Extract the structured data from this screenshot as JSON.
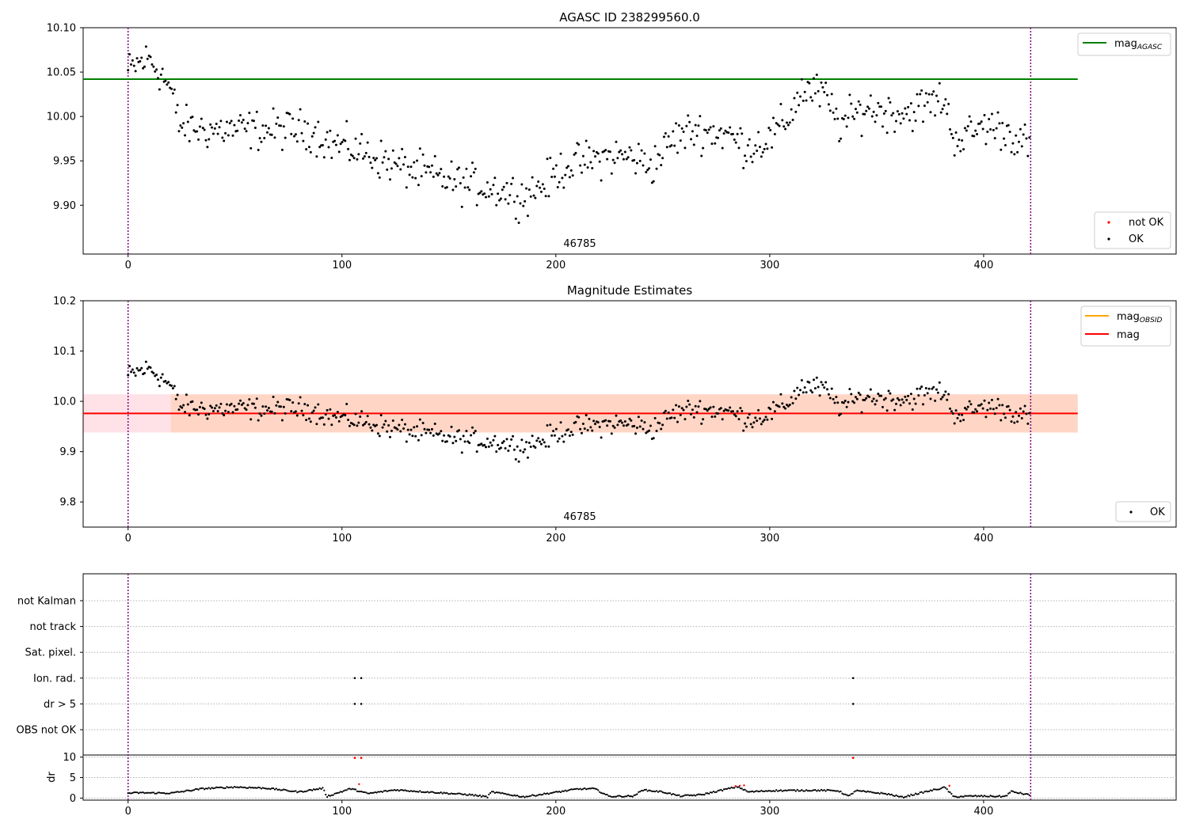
{
  "chart_data": [
    {
      "type": "scatter",
      "title": "AGASC ID 238299560.0",
      "annotation": "46785",
      "xlim": [
        -21,
        490
      ],
      "ylim": [
        9.845,
        10.1
      ],
      "x_ticks": [
        "0",
        "100",
        "200",
        "300",
        "400"
      ],
      "y_ticks": [
        "9.90",
        "9.95",
        "10.00",
        "10.05",
        "10.10"
      ],
      "vlines_x": [
        0,
        422
      ],
      "hline": {
        "y": 10.042,
        "x_range": [
          -21,
          444
        ],
        "color": "#008000"
      },
      "legend_upper": [
        {
          "label": "mag",
          "sub": "AGASC",
          "color": "#008000",
          "kind": "line"
        }
      ],
      "legend_lower": [
        {
          "label": "not OK",
          "color": "#ff0000",
          "kind": "dot"
        },
        {
          "label": "OK",
          "color": "#000000",
          "kind": "dot"
        }
      ],
      "series_anchors": [
        [
          0,
          10.05
        ],
        [
          5,
          10.06
        ],
        [
          10,
          10.065
        ],
        [
          15,
          10.05
        ],
        [
          20,
          10.03
        ],
        [
          24,
          9.99
        ],
        [
          35,
          9.985
        ],
        [
          50,
          9.985
        ],
        [
          70,
          9.985
        ],
        [
          85,
          9.985
        ],
        [
          95,
          9.97
        ],
        [
          110,
          9.96
        ],
        [
          125,
          9.945
        ],
        [
          140,
          9.935
        ],
        [
          155,
          9.925
        ],
        [
          170,
          9.92
        ],
        [
          185,
          9.91
        ],
        [
          195,
          9.925
        ],
        [
          205,
          9.945
        ],
        [
          215,
          9.95
        ],
        [
          225,
          9.955
        ],
        [
          235,
          9.955
        ],
        [
          245,
          9.945
        ],
        [
          255,
          9.975
        ],
        [
          265,
          9.985
        ],
        [
          280,
          9.98
        ],
        [
          290,
          9.965
        ],
        [
          300,
          9.975
        ],
        [
          308,
          9.995
        ],
        [
          315,
          10.03
        ],
        [
          325,
          10.025
        ],
        [
          333,
          9.99
        ],
        [
          345,
          10.01
        ],
        [
          355,
          10.005
        ],
        [
          365,
          10.005
        ],
        [
          375,
          10.015
        ],
        [
          382,
          10.02
        ],
        [
          385,
          9.98
        ],
        [
          390,
          9.975
        ],
        [
          400,
          9.99
        ],
        [
          410,
          9.985
        ],
        [
          422,
          9.965
        ]
      ]
    },
    {
      "type": "scatter",
      "title": "Magnitude Estimates",
      "annotation": "46785",
      "xlim": [
        -21,
        490
      ],
      "ylim": [
        9.75,
        10.2
      ],
      "x_ticks": [
        "0",
        "100",
        "200",
        "300",
        "400"
      ],
      "y_ticks": [
        "9.8",
        "9.9",
        "10.0",
        "10.1",
        "10.2"
      ],
      "vlines_x": [
        0,
        422
      ],
      "mag_line": {
        "y": 9.976,
        "x_range": [
          -21,
          444
        ],
        "color": "#ff0000"
      },
      "mag_band": {
        "y_range": [
          9.938,
          10.014
        ],
        "x_range": [
          -21,
          444
        ]
      },
      "legend_upper": [
        {
          "label": "mag",
          "sub": "OBSID",
          "color": "#ffa500",
          "kind": "line"
        },
        {
          "label": "mag",
          "color": "#ff0000",
          "kind": "line"
        }
      ],
      "legend_lower": [
        {
          "label": "OK",
          "color": "#000000",
          "kind": "dot"
        }
      ]
    },
    {
      "type": "scatter",
      "title": "",
      "xlim": [
        -21,
        490
      ],
      "x_ticks": [
        "0",
        "100",
        "200",
        "300",
        "400"
      ],
      "vlines_x": [
        0,
        422
      ],
      "flag_labels": [
        "not Kalman",
        "not track",
        "Sat. pixel.",
        "Ion. rad.",
        "dr > 5",
        "OBS not OK"
      ],
      "flag_points": [
        {
          "flag": "Ion. rad.",
          "x": [
            106,
            109,
            339
          ]
        },
        {
          "flag": "dr > 5",
          "x": [
            106,
            109,
            339
          ]
        }
      ],
      "dr": {
        "ylabel": "dr",
        "y_ticks": [
          "0",
          "5",
          "10"
        ],
        "ylim": [
          -0.5,
          10.5
        ],
        "outliers": [
          {
            "x": 106,
            "y": 9.8
          },
          {
            "x": 109,
            "y": 9.8
          },
          {
            "x": 339,
            "y": 9.8
          }
        ],
        "red_points": [
          {
            "x": 108,
            "y": 3.4
          },
          {
            "x": 284,
            "y": 2.9
          },
          {
            "x": 286,
            "y": 3.0
          },
          {
            "x": 288,
            "y": 3.1
          },
          {
            "x": 384,
            "y": 3.0
          }
        ],
        "anchors": [
          [
            0,
            1.2
          ],
          [
            5,
            1.3
          ],
          [
            20,
            1.2
          ],
          [
            35,
            2.3
          ],
          [
            50,
            2.7
          ],
          [
            65,
            2.4
          ],
          [
            80,
            1.5
          ],
          [
            91,
            2.4
          ],
          [
            93,
            0.4
          ],
          [
            104,
            2.3
          ],
          [
            112,
            1.1
          ],
          [
            125,
            2.0
          ],
          [
            140,
            1.5
          ],
          [
            160,
            0.8
          ],
          [
            168,
            0.3
          ],
          [
            170,
            1.5
          ],
          [
            185,
            0.3
          ],
          [
            200,
            1.4
          ],
          [
            210,
            2.2
          ],
          [
            218,
            2.3
          ],
          [
            225,
            0.4
          ],
          [
            237,
            0.5
          ],
          [
            240,
            2.0
          ],
          [
            250,
            1.5
          ],
          [
            258,
            0.5
          ],
          [
            268,
            0.8
          ],
          [
            285,
            2.8
          ],
          [
            290,
            1.5
          ],
          [
            300,
            1.8
          ],
          [
            320,
            1.9
          ],
          [
            332,
            1.8
          ],
          [
            337,
            0.4
          ],
          [
            340,
            1.8
          ],
          [
            355,
            1.0
          ],
          [
            362,
            0.2
          ],
          [
            370,
            1.2
          ],
          [
            382,
            2.6
          ],
          [
            386,
            0.3
          ],
          [
            395,
            0.5
          ],
          [
            410,
            0.4
          ],
          [
            413,
            1.6
          ],
          [
            422,
            0.7
          ]
        ]
      }
    }
  ]
}
